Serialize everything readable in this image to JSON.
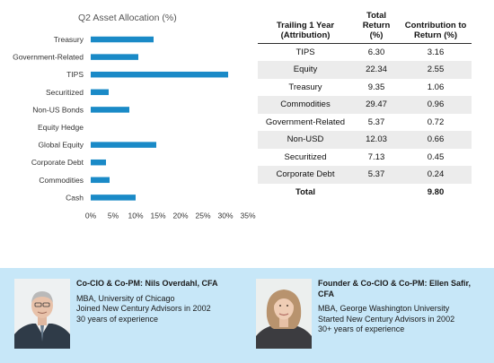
{
  "chart_data": {
    "type": "bar",
    "orientation": "horizontal",
    "title": "Q2 Asset Allocation (%)",
    "categories": [
      "Treasury",
      "Government-Related",
      "TIPS",
      "Securitized",
      "Non-US Bonds",
      "Equity Hedge",
      "Global Equity",
      "Corporate Debt",
      "Commodities",
      "Cash"
    ],
    "values": [
      14,
      10.6,
      30.6,
      4,
      8.6,
      0,
      14.6,
      3.4,
      4.2,
      10
    ],
    "xlim": [
      0,
      35
    ],
    "x_ticks": [
      "0%",
      "5%",
      "10%",
      "15%",
      "20%",
      "25%",
      "30%",
      "35%"
    ],
    "bar_color": "#1a8ac7",
    "grid": false
  },
  "attribution": {
    "headers": {
      "category": "Trailing 1 Year (Attribution)",
      "total_return": "Total Return (%)",
      "contribution": "Contribution to Return (%)"
    },
    "rows": [
      {
        "name": "TIPS",
        "return": "6.30",
        "contribution": "3.16"
      },
      {
        "name": "Equity",
        "return": "22.34",
        "contribution": "2.55"
      },
      {
        "name": "Treasury",
        "return": "9.35",
        "contribution": "1.06"
      },
      {
        "name": "Commodities",
        "return": "29.47",
        "contribution": "0.96"
      },
      {
        "name": "Government-Related",
        "return": "5.37",
        "contribution": "0.72"
      },
      {
        "name": "Non-USD",
        "return": "12.03",
        "contribution": "0.66"
      },
      {
        "name": "Securitized",
        "return": "7.13",
        "contribution": "0.45"
      },
      {
        "name": "Corporate Debt",
        "return": "5.37",
        "contribution": "0.24"
      }
    ],
    "total": {
      "name": "Total",
      "return": "",
      "contribution": "9.80"
    }
  },
  "managers": [
    {
      "title": "Co-CIO & Co-PM: Nils Overdahl, CFA",
      "lines": [
        "MBA, University of Chicago",
        "Joined New Century Advisors in 2002",
        "30 years of experience"
      ]
    },
    {
      "title": "Founder & Co-CIO & Co-PM: Ellen Safir, CFA",
      "lines": [
        "MBA, George Washington University",
        "Started New Century Advisors in 2002",
        "30+ years of experience"
      ]
    }
  ],
  "colors": {
    "bar": "#1a8ac7",
    "bio_band": "#c7e7f8",
    "row_stripe": "#ececec"
  }
}
